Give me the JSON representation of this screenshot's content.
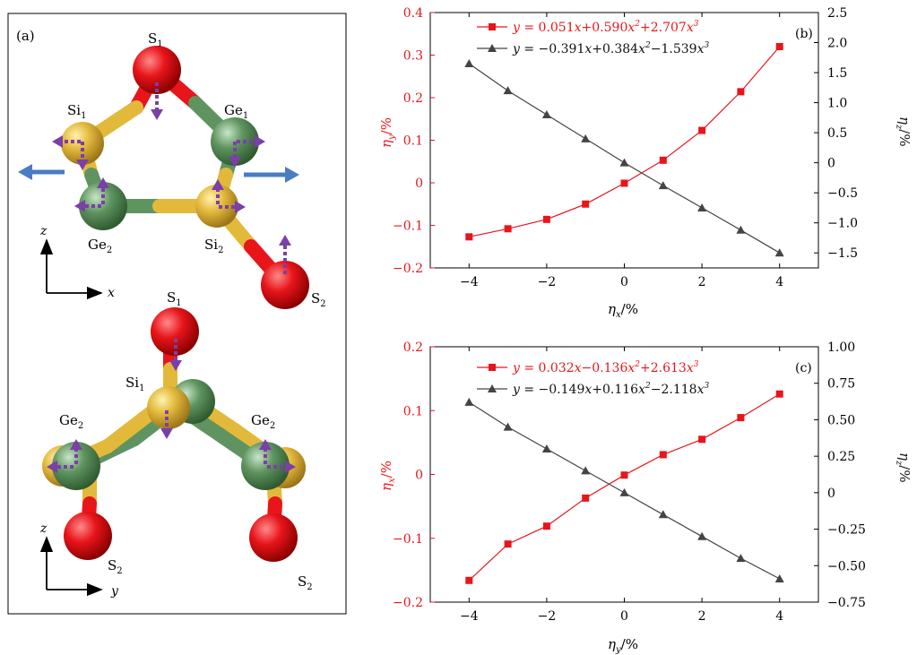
{
  "panel_a": {
    "label": "(a)",
    "top_view": {
      "atoms": {
        "s1": "S",
        "si1": "Si",
        "ge1": "Ge",
        "ge2": "Ge",
        "si2": "Si",
        "s2": "S"
      },
      "subscripts": {
        "s1": "1",
        "si1": "1",
        "ge1": "1",
        "ge2": "2",
        "si2": "2",
        "s2": "2"
      },
      "axes": {
        "vertical": "z",
        "horizontal": "x"
      }
    },
    "side_view": {
      "atoms": {
        "s1": "S",
        "si1": "Si",
        "ge2a": "Ge",
        "ge2b": "Ge",
        "s2a": "S",
        "s2b": "S"
      },
      "subscripts": {
        "s1": "1",
        "si1": "1",
        "ge2a": "2",
        "ge2b": "2",
        "s2a": "2",
        "s2b": "2"
      },
      "axes": {
        "vertical": "z",
        "horizontal": "y"
      }
    },
    "colors": {
      "S": "#e8151b",
      "Si": "#e3b93c",
      "Ge": "#5f9460",
      "arrow": "#7b3fa8",
      "strain_arrow": "#4a7cc4"
    }
  },
  "chart_data": [
    {
      "type": "line",
      "panel_label": "(b)",
      "x": [
        -4,
        -3,
        -2,
        -1,
        0,
        1,
        2,
        3,
        4
      ],
      "xlim": [
        -5,
        5
      ],
      "xticks": [
        "−4",
        "−2",
        "0",
        "2",
        "4"
      ],
      "xlabel": {
        "main": "η",
        "sub": "x",
        "unit": "/%"
      },
      "ylabel_left": {
        "main": "η",
        "sub": "y",
        "unit": "/%"
      },
      "ylabel_right": {
        "main": "η",
        "sub": "z",
        "unit": "/%"
      },
      "ylim_left": [
        -0.2,
        0.4
      ],
      "ylim_right": [
        -1.75,
        2.5
      ],
      "yticks_left": [
        "−0.2",
        "−0.1",
        "0",
        "0.1",
        "0.2",
        "0.3",
        "0.4"
      ],
      "yticks_right": [
        "−1.5",
        "−1.0",
        "−0.5",
        "0",
        "0.5",
        "1.0",
        "1.5",
        "2.0",
        "2.5"
      ],
      "series": [
        {
          "name": "y = 0.051x + 0.590x² + 2.707x³",
          "axis": "left",
          "color": "#e8151b",
          "marker": "square",
          "values": [
            -0.127,
            -0.108,
            -0.086,
            -0.05,
            -0.001,
            0.053,
            0.123,
            0.214,
            0.32
          ],
          "legend": {
            "a": "0.051",
            "b": "0.590",
            "c": "2.707",
            "s1": "+",
            "s2": "+"
          }
        },
        {
          "name": "y = −0.391x + 0.384x² − 1.539x³",
          "axis": "right",
          "color": "#444444",
          "marker": "triangle",
          "values": [
            1.65,
            1.2,
            0.8,
            0.4,
            0.0,
            -0.38,
            -0.75,
            -1.12,
            -1.5
          ],
          "legend": {
            "a": "−0.391",
            "b": "0.384",
            "c": "1.539",
            "s1": "+",
            "s2": "−"
          }
        }
      ]
    },
    {
      "type": "line",
      "panel_label": "(c)",
      "x": [
        -4,
        -3,
        -2,
        -1,
        0,
        1,
        2,
        3,
        4
      ],
      "xlim": [
        -5,
        5
      ],
      "xticks": [
        "−4",
        "−2",
        "0",
        "2",
        "4"
      ],
      "xlabel": {
        "main": "η",
        "sub": "y",
        "unit": "/%"
      },
      "ylabel_left": {
        "main": "η",
        "sub": "x",
        "unit": "/%"
      },
      "ylabel_right": {
        "main": "η",
        "sub": "z",
        "unit": "/%"
      },
      "ylim_left": [
        -0.2,
        0.2
      ],
      "ylim_right": [
        -0.75,
        1.0
      ],
      "yticks_left": [
        "−0.2",
        "−0.1",
        "0",
        "0.1",
        "0.2"
      ],
      "yticks_right": [
        "−0.75",
        "−0.50",
        "−0.25",
        "0",
        "0.25",
        "0.50",
        "0.75",
        "1.00"
      ],
      "series": [
        {
          "name": "y = 0.032x − 0.136x² + 2.613x³",
          "axis": "left",
          "color": "#e8151b",
          "marker": "square",
          "values": [
            -0.166,
            -0.109,
            -0.081,
            -0.037,
            -0.001,
            0.031,
            0.055,
            0.089,
            0.126
          ],
          "legend": {
            "a": "0.032",
            "b": "0.136",
            "c": "2.613",
            "s1": "−",
            "s2": "+"
          }
        },
        {
          "name": "y = −0.149x + 0.116x² − 2.118x³",
          "axis": "right",
          "color": "#444444",
          "marker": "triangle",
          "values": [
            0.62,
            0.45,
            0.3,
            0.15,
            0.0,
            -0.15,
            -0.3,
            -0.45,
            -0.59
          ],
          "legend": {
            "a": "−0.149",
            "b": "0.116",
            "c": "2.118",
            "s1": "+",
            "s2": "−"
          }
        }
      ]
    }
  ]
}
